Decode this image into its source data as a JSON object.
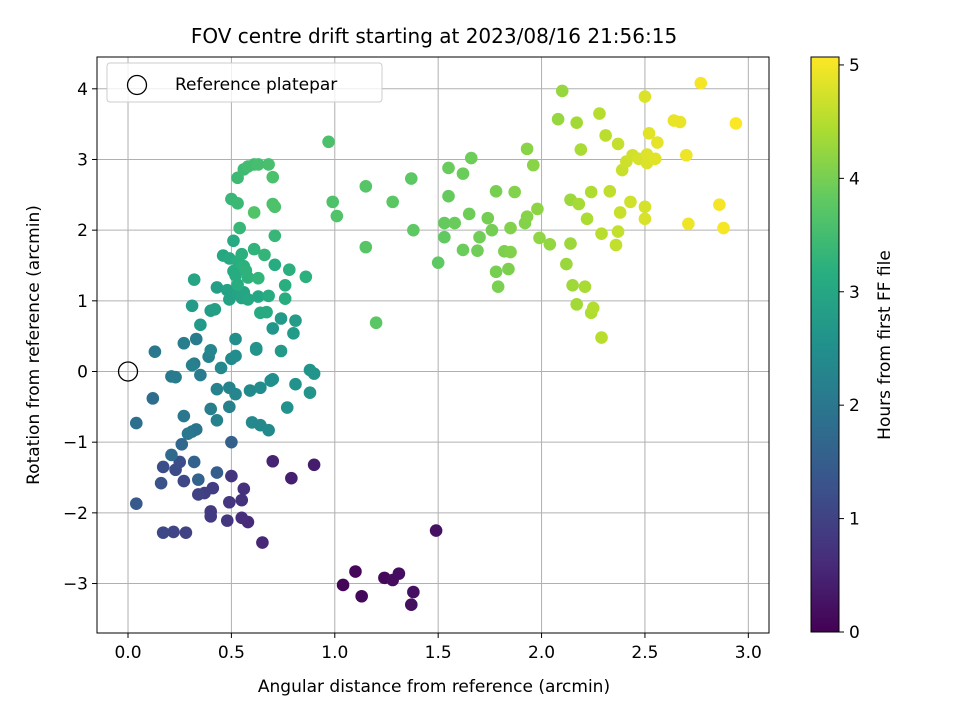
{
  "chart_data": {
    "type": "scatter",
    "title": "FOV centre drift starting at 2023/08/16 21:56:15",
    "xlabel": "Angular distance from reference (arcmin)",
    "ylabel": "Rotation from reference (arcmin)",
    "xlim": [
      -0.15,
      3.1
    ],
    "ylim": [
      -3.7,
      4.45
    ],
    "xticks": [
      0.0,
      0.5,
      1.0,
      1.5,
      2.0,
      2.5,
      3.0
    ],
    "xtick_labels": [
      "0.0",
      "0.5",
      "1.0",
      "1.5",
      "2.0",
      "2.5",
      "3.0"
    ],
    "yticks": [
      -3,
      -2,
      -1,
      0,
      1,
      2,
      3,
      4
    ],
    "ytick_labels": [
      "−3",
      "−2",
      "−1",
      "0",
      "1",
      "2",
      "3",
      "4"
    ],
    "grid": true,
    "legend": {
      "position": "top-left",
      "entries": [
        {
          "label": "Reference platepar",
          "marker": "open-circle"
        }
      ]
    },
    "reference_point": {
      "x": 0,
      "y": 0
    },
    "colorbar": {
      "label": "Hours from first FF file",
      "colormap": "viridis",
      "range": [
        0,
        5.07
      ],
      "ticks": [
        0,
        1,
        2,
        3,
        4,
        5
      ],
      "tick_labels": [
        "0",
        "1",
        "2",
        "3",
        "4",
        "5"
      ]
    },
    "points": [
      [
        1.04,
        -3.02,
        0.05
      ],
      [
        1.1,
        -2.83,
        0.08
      ],
      [
        1.13,
        -3.18,
        0.1
      ],
      [
        1.24,
        -2.92,
        0.12
      ],
      [
        1.28,
        -2.95,
        0.15
      ],
      [
        1.31,
        -2.86,
        0.18
      ],
      [
        1.37,
        -3.3,
        0.2
      ],
      [
        1.38,
        -3.12,
        0.22
      ],
      [
        1.49,
        -2.25,
        0.25
      ],
      [
        0.9,
        -1.32,
        0.4
      ],
      [
        0.79,
        -1.51,
        0.45
      ],
      [
        0.7,
        -1.27,
        0.5
      ],
      [
        0.65,
        -2.42,
        0.55
      ],
      [
        0.58,
        -2.13,
        0.6
      ],
      [
        0.55,
        -2.07,
        0.65
      ],
      [
        0.56,
        -1.66,
        0.7
      ],
      [
        0.55,
        -1.82,
        0.72
      ],
      [
        0.5,
        -1.48,
        0.75
      ],
      [
        0.49,
        -1.85,
        0.78
      ],
      [
        0.48,
        -2.11,
        0.8
      ],
      [
        0.4,
        -1.98,
        0.85
      ],
      [
        0.4,
        -2.05,
        0.88
      ],
      [
        0.41,
        -1.65,
        0.9
      ],
      [
        0.37,
        -1.72,
        0.95
      ],
      [
        0.34,
        -1.74,
        1.0
      ],
      [
        0.28,
        -2.28,
        1.0
      ],
      [
        0.22,
        -2.27,
        1.05
      ],
      [
        0.17,
        -2.28,
        1.1
      ],
      [
        0.27,
        -1.55,
        1.1
      ],
      [
        0.23,
        -1.39,
        1.15
      ],
      [
        0.25,
        -1.28,
        1.2
      ],
      [
        0.17,
        -1.35,
        1.2
      ],
      [
        0.16,
        -1.58,
        1.3
      ],
      [
        0.04,
        -1.87,
        1.4
      ],
      [
        0.43,
        -1.43,
        1.5
      ],
      [
        0.5,
        -1.0,
        1.55
      ],
      [
        0.32,
        -1.28,
        1.6
      ],
      [
        0.34,
        -1.53,
        1.6
      ],
      [
        0.26,
        -1.03,
        1.7
      ],
      [
        0.21,
        -1.18,
        1.75
      ],
      [
        0.12,
        -0.38,
        1.8
      ],
      [
        0.04,
        -0.73,
        1.85
      ],
      [
        0.31,
        -0.85,
        1.9
      ],
      [
        0.33,
        -0.82,
        1.95
      ],
      [
        0.29,
        -0.88,
        2.0
      ],
      [
        0.27,
        -0.63,
        2.0
      ],
      [
        0.21,
        -0.07,
        2.05
      ],
      [
        0.23,
        -0.08,
        2.1
      ],
      [
        0.35,
        -0.05,
        2.1
      ],
      [
        0.4,
        -0.53,
        2.15
      ],
      [
        0.43,
        -0.69,
        2.2
      ],
      [
        0.49,
        -0.5,
        2.2
      ],
      [
        0.43,
        -0.25,
        2.25
      ],
      [
        0.49,
        -0.23,
        2.25
      ],
      [
        0.52,
        -0.32,
        2.3
      ],
      [
        0.6,
        -0.72,
        2.35
      ],
      [
        0.64,
        -0.76,
        2.35
      ],
      [
        0.68,
        -0.83,
        2.4
      ],
      [
        0.59,
        -0.27,
        2.4
      ],
      [
        0.64,
        -0.23,
        2.45
      ],
      [
        0.69,
        -0.13,
        2.5
      ],
      [
        0.7,
        -0.11,
        2.5
      ],
      [
        0.77,
        -0.51,
        2.55
      ],
      [
        0.81,
        -0.18,
        2.55
      ],
      [
        0.88,
        -0.3,
        2.6
      ],
      [
        0.9,
        -0.03,
        2.6
      ],
      [
        0.88,
        0.02,
        2.62
      ],
      [
        0.13,
        0.28,
        2.0
      ],
      [
        0.32,
        0.11,
        2.05
      ],
      [
        0.33,
        0.46,
        2.1
      ],
      [
        0.27,
        0.4,
        2.15
      ],
      [
        0.31,
        0.09,
        2.2
      ],
      [
        0.39,
        0.21,
        2.25
      ],
      [
        0.4,
        0.3,
        2.3
      ],
      [
        0.45,
        0.05,
        2.35
      ],
      [
        0.5,
        0.18,
        2.4
      ],
      [
        0.52,
        0.22,
        2.45
      ],
      [
        0.52,
        0.46,
        2.5
      ],
      [
        0.62,
        0.31,
        2.55
      ],
      [
        0.62,
        0.33,
        2.6
      ],
      [
        0.7,
        0.61,
        2.65
      ],
      [
        0.74,
        0.75,
        2.7
      ],
      [
        0.74,
        0.29,
        2.72
      ],
      [
        0.8,
        0.54,
        2.75
      ],
      [
        0.81,
        0.72,
        2.78
      ],
      [
        0.35,
        0.66,
        2.7
      ],
      [
        0.31,
        0.93,
        2.75
      ],
      [
        0.4,
        0.86,
        2.8
      ],
      [
        0.42,
        0.88,
        2.85
      ],
      [
        0.43,
        1.19,
        2.85
      ],
      [
        0.48,
        1.15,
        2.88
      ],
      [
        0.49,
        1.02,
        2.9
      ],
      [
        0.53,
        1.1,
        2.92
      ],
      [
        0.55,
        1.04,
        2.95
      ],
      [
        0.56,
        1.12,
        2.98
      ],
      [
        0.58,
        1.02,
        3.0
      ],
      [
        0.63,
        1.06,
        3.02
      ],
      [
        0.64,
        0.83,
        3.05
      ],
      [
        0.67,
        0.84,
        3.08
      ],
      [
        0.68,
        1.07,
        3.1
      ],
      [
        0.71,
        1.51,
        3.12
      ],
      [
        0.76,
        1.03,
        3.15
      ],
      [
        0.76,
        1.22,
        3.18
      ],
      [
        0.78,
        1.44,
        3.2
      ],
      [
        0.86,
        1.34,
        3.22
      ],
      [
        0.32,
        1.3,
        2.95
      ],
      [
        0.46,
        1.64,
        3.0
      ],
      [
        0.49,
        1.6,
        3.05
      ],
      [
        0.51,
        1.85,
        3.08
      ],
      [
        0.51,
        1.42,
        3.1
      ],
      [
        0.52,
        1.36,
        3.12
      ],
      [
        0.53,
        1.23,
        3.15
      ],
      [
        0.53,
        1.56,
        3.18
      ],
      [
        0.55,
        1.66,
        3.2
      ],
      [
        0.56,
        1.49,
        3.22
      ],
      [
        0.57,
        1.43,
        3.25
      ],
      [
        0.58,
        1.33,
        3.25
      ],
      [
        0.61,
        1.73,
        3.28
      ],
      [
        0.63,
        1.32,
        3.3
      ],
      [
        0.66,
        1.65,
        3.32
      ],
      [
        0.71,
        1.92,
        3.35
      ],
      [
        0.54,
        2.03,
        3.35
      ],
      [
        0.5,
        2.44,
        3.38
      ],
      [
        0.53,
        2.38,
        3.4
      ],
      [
        0.53,
        2.74,
        3.42
      ],
      [
        0.56,
        2.86,
        3.45
      ],
      [
        0.58,
        2.9,
        3.48
      ],
      [
        0.61,
        2.93,
        3.5
      ],
      [
        0.63,
        2.93,
        3.52
      ],
      [
        0.68,
        2.93,
        3.55
      ],
      [
        0.7,
        2.75,
        3.58
      ],
      [
        0.7,
        2.37,
        3.6
      ],
      [
        0.71,
        2.33,
        3.62
      ],
      [
        0.61,
        2.25,
        3.65
      ],
      [
        0.97,
        3.25,
        3.6
      ],
      [
        0.99,
        2.4,
        3.62
      ],
      [
        1.01,
        2.2,
        3.65
      ],
      [
        1.15,
        2.62,
        3.7
      ],
      [
        1.15,
        1.76,
        3.72
      ],
      [
        1.2,
        0.69,
        3.75
      ],
      [
        1.28,
        2.4,
        3.75
      ],
      [
        1.37,
        2.73,
        3.78
      ],
      [
        1.38,
        2.0,
        3.8
      ],
      [
        1.5,
        1.54,
        3.8
      ],
      [
        1.53,
        1.9,
        3.82
      ],
      [
        1.53,
        2.1,
        3.85
      ],
      [
        1.55,
        2.48,
        3.85
      ],
      [
        1.55,
        2.88,
        3.88
      ],
      [
        1.58,
        2.1,
        3.88
      ],
      [
        1.62,
        1.72,
        3.9
      ],
      [
        1.62,
        2.8,
        3.9
      ],
      [
        1.65,
        2.23,
        3.92
      ],
      [
        1.66,
        3.02,
        3.92
      ],
      [
        1.69,
        1.71,
        3.95
      ],
      [
        1.7,
        1.9,
        3.95
      ],
      [
        1.74,
        2.17,
        3.98
      ],
      [
        1.76,
        2.0,
        3.98
      ],
      [
        1.78,
        2.55,
        4.0
      ],
      [
        1.78,
        1.41,
        4.0
      ],
      [
        1.79,
        1.2,
        4.02
      ],
      [
        1.82,
        1.7,
        4.05
      ],
      [
        1.84,
        1.45,
        4.05
      ],
      [
        1.85,
        1.69,
        4.08
      ],
      [
        1.85,
        2.03,
        4.08
      ],
      [
        1.87,
        2.54,
        4.1
      ],
      [
        1.92,
        2.1,
        4.1
      ],
      [
        1.93,
        2.19,
        4.12
      ],
      [
        1.93,
        3.15,
        4.15
      ],
      [
        1.96,
        2.92,
        4.15
      ],
      [
        1.98,
        2.3,
        4.18
      ],
      [
        1.99,
        1.89,
        4.2
      ],
      [
        2.04,
        1.8,
        4.22
      ],
      [
        2.08,
        3.57,
        4.25
      ],
      [
        2.1,
        3.97,
        4.25
      ],
      [
        2.12,
        1.52,
        4.28
      ],
      [
        2.14,
        2.43,
        4.3
      ],
      [
        2.14,
        1.81,
        4.3
      ],
      [
        2.15,
        1.22,
        4.32
      ],
      [
        2.17,
        3.52,
        4.35
      ],
      [
        2.17,
        0.95,
        4.35
      ],
      [
        2.18,
        2.37,
        4.38
      ],
      [
        2.19,
        3.14,
        4.4
      ],
      [
        2.21,
        1.2,
        4.4
      ],
      [
        2.22,
        2.16,
        4.42
      ],
      [
        2.24,
        2.54,
        4.45
      ],
      [
        2.24,
        0.83,
        4.45
      ],
      [
        2.25,
        0.9,
        4.48
      ],
      [
        2.28,
        3.65,
        4.5
      ],
      [
        2.29,
        1.95,
        4.52
      ],
      [
        2.29,
        0.48,
        4.52
      ],
      [
        2.31,
        3.34,
        4.55
      ],
      [
        2.33,
        2.55,
        4.58
      ],
      [
        2.36,
        1.79,
        4.6
      ],
      [
        2.37,
        1.98,
        4.62
      ],
      [
        2.37,
        3.22,
        4.62
      ],
      [
        2.38,
        2.25,
        4.65
      ],
      [
        2.39,
        2.85,
        4.65
      ],
      [
        2.41,
        2.97,
        4.68
      ],
      [
        2.43,
        2.4,
        4.7
      ],
      [
        2.44,
        3.06,
        4.72
      ],
      [
        2.47,
        3.01,
        4.75
      ],
      [
        2.5,
        2.33,
        4.75
      ],
      [
        2.5,
        2.16,
        4.78
      ],
      [
        2.5,
        3.89,
        4.8
      ],
      [
        2.51,
        2.95,
        4.8
      ],
      [
        2.51,
        3.07,
        4.82
      ],
      [
        2.52,
        3.37,
        4.85
      ],
      [
        2.55,
        3.01,
        4.85
      ],
      [
        2.56,
        3.24,
        4.88
      ],
      [
        2.64,
        3.55,
        4.9
      ],
      [
        2.67,
        3.53,
        4.92
      ],
      [
        2.7,
        3.06,
        4.95
      ],
      [
        2.71,
        2.09,
        4.95
      ],
      [
        2.77,
        4.08,
        5.0
      ],
      [
        2.86,
        2.36,
        5.0
      ],
      [
        2.88,
        2.03,
        5.02
      ],
      [
        2.94,
        3.51,
        5.05
      ]
    ]
  }
}
